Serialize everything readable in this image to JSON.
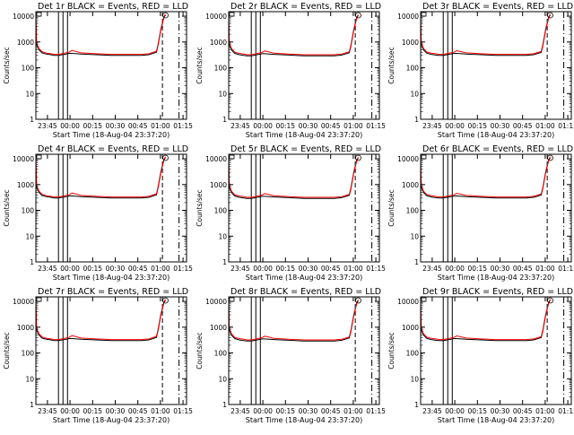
{
  "figure": {
    "x_title": "Start Time (18-Aug-04 23:37:20)",
    "y_title": "Counts/sec",
    "x_ticks": [
      "23:45",
      "00:00",
      "00:15",
      "00:30",
      "00:45",
      "01:00",
      "01:15"
    ],
    "y_ticks": [
      "1",
      "10",
      "100",
      "1000",
      "10000"
    ],
    "colors": {
      "events": "#000000",
      "lld": "#ff0000",
      "background": "#ffffff"
    }
  },
  "chart_data": [
    {
      "type": "line",
      "title": "Det 1r BLACK = Events, RED = LLD",
      "xlabel": "Start Time (18-Aug-04 23:37:20)",
      "ylabel": "Counts/sec",
      "xlim_min": [
        0,
        100
      ],
      "ylim": [
        1,
        15000
      ],
      "y_scale": "log",
      "x_min": [
        0,
        0.5,
        2,
        4,
        7,
        10,
        12,
        15,
        20,
        22,
        24,
        30,
        40,
        50,
        60,
        70,
        75,
        80,
        81,
        83,
        85,
        86
      ],
      "series": [
        {
          "name": "Events",
          "values": [
            8000,
            800,
            500,
            380,
            340,
            320,
            300,
            300,
            340,
            360,
            360,
            340,
            320,
            300,
            300,
            300,
            320,
            400,
            700,
            3000,
            9000,
            11000
          ]
        },
        {
          "name": "LLD",
          "values": [
            9000,
            900,
            560,
            420,
            370,
            350,
            330,
            330,
            380,
            400,
            470,
            380,
            350,
            330,
            330,
            330,
            350,
            440,
            780,
            3300,
            9800,
            12000
          ]
        }
      ],
      "vertical_lines_min": {
        "solid": [
          15,
          18,
          21
        ],
        "dashed": [
          84
        ],
        "dash_dot": [
          95
        ]
      }
    },
    {
      "type": "line",
      "title": "Det 2r BLACK = Events, RED = LLD",
      "xlabel": "Start Time (18-Aug-04 23:37:20)",
      "ylabel": "Counts/sec",
      "xlim_min": [
        0,
        100
      ],
      "ylim": [
        1,
        15000
      ],
      "y_scale": "log",
      "x_min": [
        0,
        0.5,
        2,
        4,
        7,
        10,
        12,
        15,
        20,
        22,
        24,
        30,
        40,
        50,
        60,
        70,
        75,
        80,
        81,
        83,
        85,
        86
      ],
      "series": [
        {
          "name": "Events",
          "values": [
            7000,
            750,
            480,
            360,
            320,
            300,
            290,
            290,
            330,
            350,
            350,
            330,
            310,
            290,
            290,
            290,
            310,
            380,
            650,
            2800,
            8500,
            10500
          ]
        },
        {
          "name": "LLD",
          "values": [
            8000,
            850,
            540,
            400,
            360,
            340,
            320,
            320,
            370,
            390,
            450,
            370,
            340,
            320,
            320,
            320,
            340,
            420,
            720,
            3100,
            9200,
            11500
          ]
        }
      ],
      "vertical_lines_min": {
        "solid": [
          15,
          18,
          21
        ],
        "dashed": [
          84
        ],
        "dash_dot": [
          95
        ]
      }
    },
    {
      "type": "line",
      "title": "Det 3r BLACK = Events, RED = LLD",
      "xlabel": "Start Time (18-Aug-04 23:37:20)",
      "ylabel": "Counts/sec",
      "xlim_min": [
        0,
        100
      ],
      "ylim": [
        1,
        15000
      ],
      "y_scale": "log",
      "x_min": [
        0,
        0.5,
        2,
        4,
        7,
        10,
        12,
        15,
        20,
        22,
        24,
        30,
        40,
        50,
        60,
        70,
        75,
        80,
        81,
        83,
        85,
        86
      ],
      "series": [
        {
          "name": "Events",
          "values": [
            7500,
            780,
            490,
            370,
            330,
            310,
            300,
            300,
            340,
            360,
            360,
            340,
            320,
            300,
            300,
            300,
            320,
            390,
            680,
            2900,
            8800,
            11000
          ]
        },
        {
          "name": "LLD",
          "values": [
            8500,
            870,
            550,
            410,
            370,
            350,
            330,
            330,
            380,
            400,
            460,
            380,
            350,
            330,
            330,
            330,
            350,
            430,
            750,
            3200,
            9500,
            12000
          ]
        }
      ],
      "vertical_lines_min": {
        "solid": [
          15,
          18,
          21
        ],
        "dashed": [
          84
        ],
        "dash_dot": [
          95
        ]
      }
    },
    {
      "type": "line",
      "title": "Det 4r BLACK = Events, RED = LLD",
      "xlabel": "Start Time (18-Aug-04 23:37:20)",
      "ylabel": "Counts/sec",
      "xlim_min": [
        0,
        100
      ],
      "ylim": [
        1,
        15000
      ],
      "y_scale": "log",
      "x_min": [
        0,
        0.5,
        2,
        4,
        7,
        10,
        12,
        15,
        20,
        22,
        24,
        30,
        40,
        50,
        60,
        70,
        75,
        80,
        81,
        83,
        85,
        86
      ],
      "series": [
        {
          "name": "Events",
          "values": [
            8000,
            800,
            500,
            380,
            340,
            320,
            300,
            300,
            340,
            360,
            360,
            340,
            320,
            300,
            300,
            300,
            320,
            400,
            700,
            3000,
            9000,
            11000
          ]
        },
        {
          "name": "LLD",
          "values": [
            9000,
            900,
            560,
            420,
            370,
            350,
            330,
            330,
            380,
            400,
            470,
            380,
            350,
            330,
            330,
            330,
            350,
            440,
            780,
            3300,
            9800,
            12000
          ]
        }
      ],
      "vertical_lines_min": {
        "solid": [
          15,
          18,
          21
        ],
        "dashed": [
          84
        ],
        "dash_dot": [
          95
        ]
      }
    },
    {
      "type": "line",
      "title": "Det 5r BLACK = Events, RED = LLD",
      "xlabel": "Start Time (18-Aug-04 23:37:20)",
      "ylabel": "Counts/sec",
      "xlim_min": [
        0,
        100
      ],
      "ylim": [
        1,
        15000
      ],
      "y_scale": "log",
      "x_min": [
        0,
        0.5,
        2,
        4,
        7,
        10,
        12,
        15,
        20,
        22,
        24,
        30,
        40,
        50,
        60,
        70,
        75,
        80,
        81,
        83,
        85,
        86
      ],
      "series": [
        {
          "name": "Events",
          "values": [
            7000,
            750,
            480,
            360,
            320,
            300,
            290,
            290,
            330,
            350,
            350,
            330,
            310,
            290,
            290,
            290,
            310,
            380,
            650,
            2800,
            8500,
            10500
          ]
        },
        {
          "name": "LLD",
          "values": [
            8000,
            850,
            540,
            400,
            360,
            340,
            320,
            320,
            370,
            390,
            450,
            370,
            340,
            320,
            320,
            320,
            340,
            420,
            720,
            3100,
            9200,
            11500
          ]
        }
      ],
      "vertical_lines_min": {
        "solid": [
          15,
          18,
          21
        ],
        "dashed": [
          84
        ],
        "dash_dot": [
          95
        ]
      }
    },
    {
      "type": "line",
      "title": "Det 6r BLACK = Events, RED = LLD",
      "xlabel": "Start Time (18-Aug-04 23:37:20)",
      "ylabel": "Counts/sec",
      "xlim_min": [
        0,
        100
      ],
      "ylim": [
        1,
        15000
      ],
      "y_scale": "log",
      "x_min": [
        0,
        0.5,
        2,
        4,
        7,
        10,
        12,
        15,
        20,
        22,
        24,
        30,
        40,
        50,
        60,
        70,
        75,
        80,
        81,
        83,
        85,
        86
      ],
      "series": [
        {
          "name": "Events",
          "values": [
            7500,
            780,
            490,
            370,
            330,
            310,
            300,
            300,
            340,
            360,
            360,
            340,
            320,
            300,
            300,
            300,
            320,
            390,
            680,
            2900,
            8800,
            11000
          ]
        },
        {
          "name": "LLD",
          "values": [
            8500,
            870,
            550,
            410,
            370,
            350,
            330,
            330,
            380,
            400,
            460,
            380,
            350,
            330,
            330,
            330,
            350,
            430,
            750,
            3200,
            9500,
            12000
          ]
        }
      ],
      "vertical_lines_min": {
        "solid": [
          15,
          18,
          21
        ],
        "dashed": [
          84
        ],
        "dash_dot": [
          95
        ]
      }
    },
    {
      "type": "line",
      "title": "Det 7r BLACK = Events, RED = LLD",
      "xlabel": "Start Time (18-Aug-04 23:37:20)",
      "ylabel": "Counts/sec",
      "xlim_min": [
        0,
        100
      ],
      "ylim": [
        1,
        15000
      ],
      "y_scale": "log",
      "x_min": [
        0,
        0.5,
        2,
        4,
        7,
        10,
        12,
        15,
        20,
        22,
        24,
        30,
        40,
        50,
        60,
        70,
        75,
        80,
        81,
        83,
        85,
        86
      ],
      "series": [
        {
          "name": "Events",
          "values": [
            8000,
            800,
            500,
            380,
            340,
            320,
            300,
            300,
            340,
            360,
            360,
            340,
            320,
            300,
            300,
            300,
            320,
            400,
            700,
            3000,
            9000,
            11000
          ]
        },
        {
          "name": "LLD",
          "values": [
            9000,
            900,
            560,
            420,
            370,
            350,
            330,
            330,
            380,
            400,
            470,
            380,
            350,
            330,
            330,
            330,
            350,
            440,
            780,
            3300,
            9800,
            12000
          ]
        }
      ],
      "vertical_lines_min": {
        "solid": [
          15,
          18,
          21
        ],
        "dashed": [
          84
        ],
        "dash_dot": [
          95
        ]
      }
    },
    {
      "type": "line",
      "title": "Det 8r BLACK = Events, RED = LLD",
      "xlabel": "Start Time (18-Aug-04 23:37:20)",
      "ylabel": "Counts/sec",
      "xlim_min": [
        0,
        100
      ],
      "ylim": [
        1,
        15000
      ],
      "y_scale": "log",
      "x_min": [
        0,
        0.5,
        2,
        4,
        7,
        10,
        12,
        15,
        20,
        22,
        24,
        30,
        40,
        50,
        60,
        70,
        75,
        80,
        81,
        83,
        85,
        86
      ],
      "series": [
        {
          "name": "Events",
          "values": [
            7000,
            750,
            480,
            360,
            320,
            300,
            290,
            290,
            330,
            350,
            350,
            330,
            310,
            290,
            290,
            290,
            310,
            380,
            650,
            2800,
            8500,
            10500
          ]
        },
        {
          "name": "LLD",
          "values": [
            8000,
            850,
            540,
            400,
            360,
            340,
            320,
            320,
            370,
            390,
            450,
            370,
            340,
            320,
            320,
            320,
            340,
            420,
            720,
            3100,
            9200,
            11500
          ]
        }
      ],
      "vertical_lines_min": {
        "solid": [
          15,
          18,
          21
        ],
        "dashed": [
          84
        ],
        "dash_dot": [
          95
        ]
      }
    },
    {
      "type": "line",
      "title": "Det 9r BLACK = Events, RED = LLD",
      "xlabel": "Start Time (18-Aug-04 23:37:20)",
      "ylabel": "Counts/sec",
      "xlim_min": [
        0,
        100
      ],
      "ylim": [
        1,
        15000
      ],
      "y_scale": "log",
      "x_min": [
        0,
        0.5,
        2,
        4,
        7,
        10,
        12,
        15,
        20,
        22,
        24,
        30,
        40,
        50,
        60,
        70,
        75,
        80,
        81,
        83,
        85,
        86
      ],
      "series": [
        {
          "name": "Events",
          "values": [
            7500,
            780,
            490,
            370,
            330,
            310,
            300,
            300,
            340,
            360,
            360,
            340,
            320,
            300,
            300,
            300,
            320,
            390,
            680,
            2900,
            8800,
            11000
          ]
        },
        {
          "name": "LLD",
          "values": [
            8500,
            870,
            550,
            410,
            370,
            350,
            330,
            330,
            380,
            400,
            460,
            380,
            350,
            330,
            330,
            330,
            350,
            430,
            750,
            3200,
            9500,
            12000
          ]
        }
      ],
      "vertical_lines_min": {
        "solid": [
          15,
          18,
          21
        ],
        "dashed": [
          84
        ],
        "dash_dot": [
          95
        ]
      }
    }
  ]
}
